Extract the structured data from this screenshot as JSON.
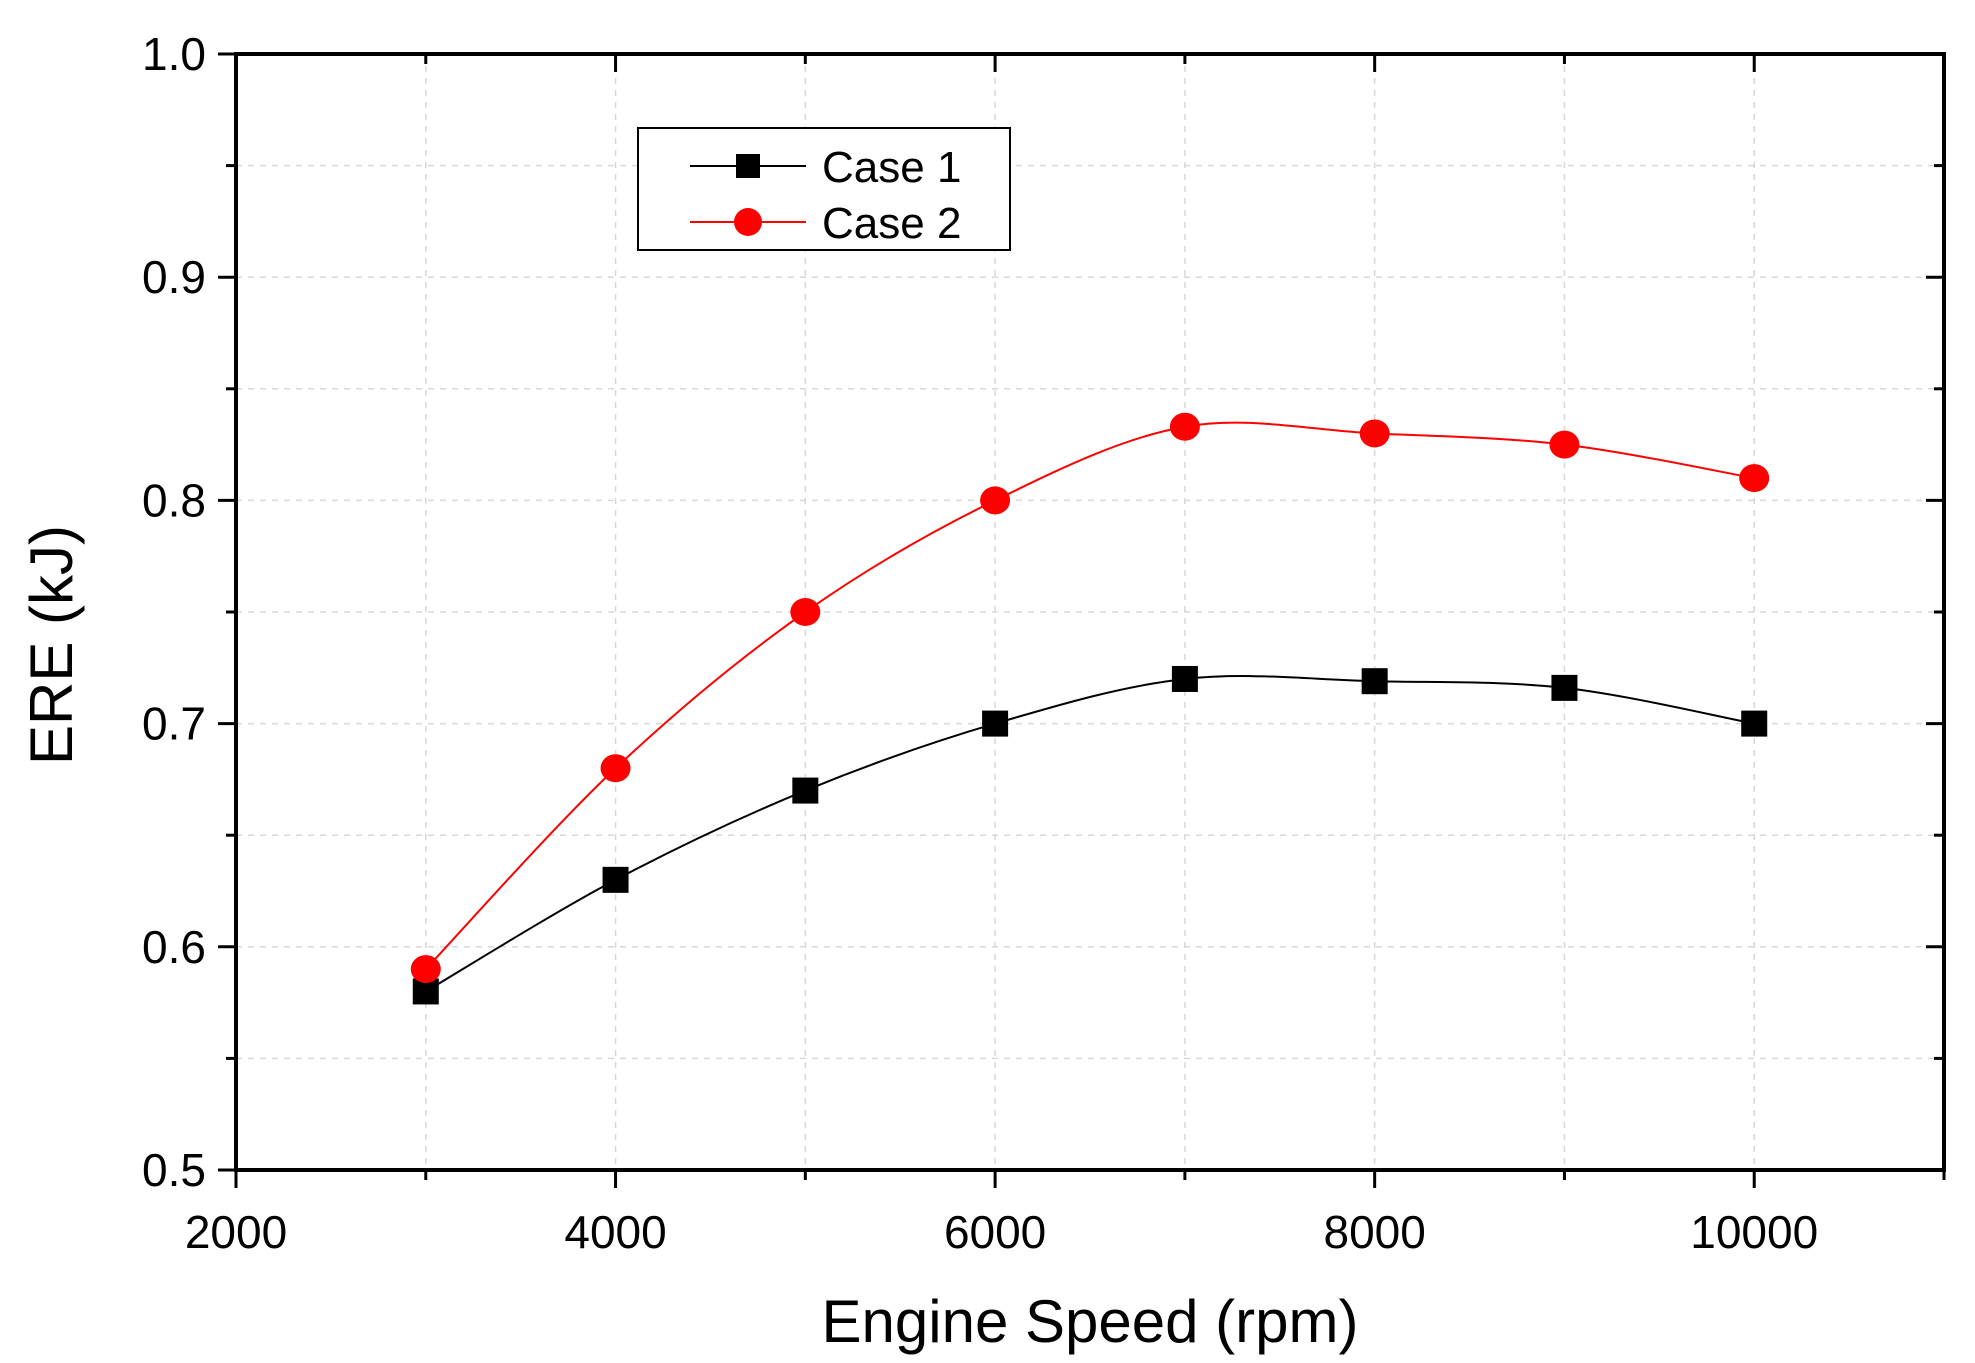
{
  "chart_data": {
    "type": "line",
    "title": "",
    "xlabel": "Engine Speed (rpm)",
    "ylabel": "ERE (kJ)",
    "xlim": [
      2000,
      11000
    ],
    "ylim": [
      0.5,
      1.0
    ],
    "x_ticks": [
      2000,
      4000,
      6000,
      8000,
      10000
    ],
    "x_tick_labels": [
      "2000",
      "4000",
      "6000",
      "8000",
      "10000"
    ],
    "y_ticks": [
      0.5,
      0.6,
      0.7,
      0.8,
      0.9,
      1.0
    ],
    "y_tick_labels": [
      "0.5",
      "0.6",
      "0.7",
      "0.8",
      "0.9",
      "1.0"
    ],
    "grid": true,
    "legend_position": "top-left",
    "x": [
      3000,
      4000,
      5000,
      6000,
      7000,
      8000,
      9000,
      10000
    ],
    "series": [
      {
        "name": "Case 1",
        "color": "#000000",
        "marker": "square",
        "values": [
          0.58,
          0.63,
          0.67,
          0.7,
          0.72,
          0.719,
          0.716,
          0.7
        ]
      },
      {
        "name": "Case 2",
        "color": "#ff0000",
        "marker": "circle",
        "values": [
          0.59,
          0.68,
          0.75,
          0.8,
          0.833,
          0.83,
          0.825,
          0.81
        ]
      }
    ]
  }
}
